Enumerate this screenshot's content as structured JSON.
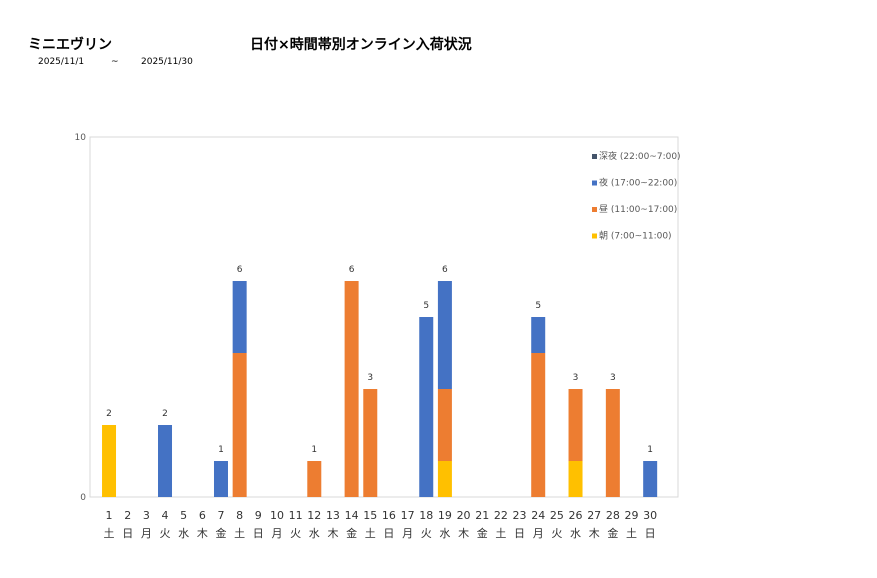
{
  "header": {
    "store": "ミニエヴリン",
    "title": "日付×時間帯別オンライン入荷状況",
    "date_from": "2025/11/1",
    "tilde": "~",
    "date_to": "2025/11/30"
  },
  "chart_data": {
    "type": "bar",
    "stacked": true,
    "ylim": [
      0,
      10
    ],
    "yticks": [
      0,
      10
    ],
    "grid": false,
    "legend": "top-right",
    "categories": [
      "1",
      "2",
      "3",
      "4",
      "5",
      "6",
      "7",
      "8",
      "9",
      "10",
      "11",
      "12",
      "13",
      "14",
      "15",
      "16",
      "17",
      "18",
      "19",
      "20",
      "21",
      "22",
      "23",
      "24",
      "25",
      "26",
      "27",
      "28",
      "29",
      "30"
    ],
    "weekdays": [
      "土",
      "日",
      "月",
      "火",
      "水",
      "木",
      "金",
      "土",
      "日",
      "月",
      "火",
      "水",
      "木",
      "金",
      "土",
      "日",
      "月",
      "火",
      "水",
      "木",
      "金",
      "土",
      "日",
      "月",
      "火",
      "水",
      "木",
      "金",
      "土",
      "日"
    ],
    "series": [
      {
        "name": "朝 (7:00~11:00)",
        "color": "#FFC000",
        "values": [
          2,
          0,
          0,
          0,
          0,
          0,
          0,
          0,
          0,
          0,
          0,
          0,
          0,
          0,
          0,
          0,
          0,
          0,
          1,
          0,
          0,
          0,
          0,
          0,
          0,
          1,
          0,
          0,
          0,
          0
        ]
      },
      {
        "name": "昼 (11:00~17:00)",
        "color": "#ED7D31",
        "values": [
          0,
          0,
          0,
          0,
          0,
          0,
          0,
          4,
          0,
          0,
          0,
          1,
          0,
          6,
          3,
          0,
          0,
          0,
          2,
          0,
          0,
          0,
          0,
          4,
          0,
          2,
          0,
          3,
          0,
          0
        ]
      },
      {
        "name": "夜 (17:00~22:00)",
        "color": "#4472C4",
        "values": [
          0,
          0,
          0,
          2,
          0,
          0,
          1,
          2,
          0,
          0,
          0,
          0,
          0,
          0,
          0,
          0,
          0,
          5,
          3,
          0,
          0,
          0,
          0,
          1,
          0,
          0,
          0,
          0,
          0,
          1
        ]
      },
      {
        "name": "深夜 (22:00~7:00)",
        "color": "#44546A",
        "values": [
          0,
          0,
          0,
          0,
          0,
          0,
          0,
          0,
          0,
          0,
          0,
          0,
          0,
          0,
          0,
          0,
          0,
          0,
          0,
          0,
          0,
          0,
          0,
          0,
          0,
          0,
          0,
          0,
          0,
          0
        ]
      }
    ],
    "totals": [
      2,
      0,
      0,
      2,
      0,
      0,
      1,
      6,
      0,
      0,
      0,
      1,
      0,
      6,
      3,
      0,
      0,
      5,
      6,
      0,
      0,
      0,
      0,
      5,
      0,
      3,
      0,
      3,
      0,
      1
    ]
  }
}
